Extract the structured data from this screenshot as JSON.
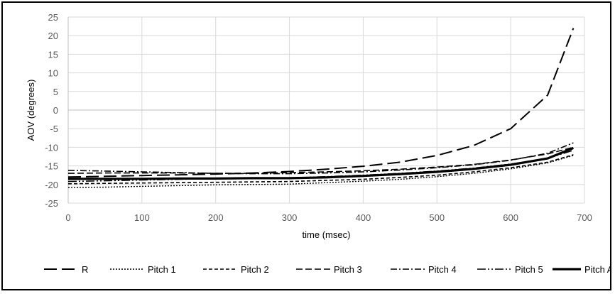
{
  "chart_data": {
    "type": "line",
    "title": "",
    "xlabel": "time (msec)",
    "ylabel": "AOV (degrees)",
    "xlim": [
      0,
      700
    ],
    "ylim": [
      -25,
      25
    ],
    "xticks": [
      0,
      100,
      200,
      300,
      400,
      500,
      600,
      700
    ],
    "yticks": [
      -25,
      -20,
      -15,
      -10,
      -5,
      0,
      5,
      10,
      15,
      20,
      25
    ],
    "grid": true,
    "legend": "bottom",
    "x": [
      0,
      50,
      100,
      150,
      200,
      250,
      300,
      350,
      400,
      450,
      500,
      550,
      600,
      650,
      685
    ],
    "series": [
      {
        "name": "R",
        "dash": "18,7",
        "width": 2,
        "values": [
          -18,
          -17.8,
          -17.6,
          -17.4,
          -17.2,
          -16.9,
          -16.5,
          -15.9,
          -15.1,
          -14.0,
          -12.2,
          -9.5,
          -5.0,
          4.0,
          22.0
        ]
      },
      {
        "name": "Pitch 1",
        "dash": "2,2",
        "width": 1.4,
        "values": [
          -20.8,
          -20.7,
          -20.5,
          -20.3,
          -20.1,
          -20.0,
          -19.9,
          -19.5,
          -19.1,
          -18.6,
          -17.9,
          -17.0,
          -15.8,
          -14.2,
          -12.2
        ]
      },
      {
        "name": "Pitch 2",
        "dash": "5,3",
        "width": 1.6,
        "values": [
          -19.8,
          -19.7,
          -19.6,
          -19.5,
          -19.4,
          -19.3,
          -19.2,
          -18.9,
          -18.6,
          -18.1,
          -17.5,
          -16.6,
          -15.5,
          -14.0,
          -12.0
        ]
      },
      {
        "name": "Pitch 3",
        "dash": "9,4",
        "width": 1.6,
        "values": [
          -17.0,
          -16.9,
          -16.9,
          -16.9,
          -17.0,
          -17.0,
          -16.8,
          -16.6,
          -16.3,
          -15.9,
          -15.3,
          -14.6,
          -13.4,
          -11.8,
          -10.0
        ]
      },
      {
        "name": "Pitch 4",
        "dash": "9,3,2,3",
        "width": 1.6,
        "values": [
          -16.2,
          -16.4,
          -16.6,
          -16.8,
          -17.0,
          -17.1,
          -17.1,
          -16.9,
          -16.6,
          -16.1,
          -15.5,
          -14.7,
          -13.5,
          -11.6,
          -8.8
        ]
      },
      {
        "name": "Pitch 5",
        "dash": "12,3,2,3,2,3",
        "width": 1.6,
        "values": [
          -19.2,
          -19.0,
          -18.8,
          -18.6,
          -18.4,
          -18.3,
          -18.2,
          -17.9,
          -17.5,
          -17.0,
          -16.4,
          -15.6,
          -14.5,
          -13.0,
          -10.8
        ]
      },
      {
        "name": "Pitch Avg",
        "dash": "",
        "width": 3.2,
        "values": [
          -18.5,
          -18.5,
          -18.5,
          -18.4,
          -18.4,
          -18.3,
          -18.3,
          -18.1,
          -17.7,
          -17.2,
          -16.6,
          -15.8,
          -14.7,
          -13.0,
          -10.2
        ]
      }
    ]
  }
}
